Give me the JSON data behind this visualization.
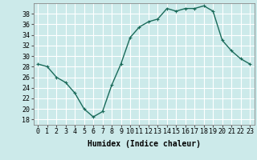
{
  "x": [
    0,
    1,
    2,
    3,
    4,
    5,
    6,
    7,
    8,
    9,
    10,
    11,
    12,
    13,
    14,
    15,
    16,
    17,
    18,
    19,
    20,
    21,
    22,
    23
  ],
  "y": [
    28.5,
    28.0,
    26.0,
    25.0,
    23.0,
    20.0,
    18.5,
    19.5,
    24.5,
    28.5,
    33.5,
    35.5,
    36.5,
    37.0,
    39.0,
    38.5,
    39.0,
    39.0,
    39.5,
    38.5,
    33.0,
    31.0,
    29.5,
    28.5
  ],
  "line_color": "#1a6b5a",
  "marker": "+",
  "marker_size": 3,
  "bg_color": "#cceaea",
  "grid_color": "#ffffff",
  "grid_minor_color": "#ddf3f3",
  "xlabel": "Humidex (Indice chaleur)",
  "ylim": [
    17,
    40
  ],
  "xlim": [
    -0.5,
    23.5
  ],
  "yticks": [
    18,
    20,
    22,
    24,
    26,
    28,
    30,
    32,
    34,
    36,
    38
  ],
  "xticks": [
    0,
    1,
    2,
    3,
    4,
    5,
    6,
    7,
    8,
    9,
    10,
    11,
    12,
    13,
    14,
    15,
    16,
    17,
    18,
    19,
    20,
    21,
    22,
    23
  ],
  "xtick_labels": [
    "0",
    "1",
    "2",
    "3",
    "4",
    "5",
    "6",
    "7",
    "8",
    "9",
    "10",
    "11",
    "12",
    "13",
    "14",
    "15",
    "16",
    "17",
    "18",
    "19",
    "20",
    "21",
    "22",
    "23"
  ],
  "ytick_labels": [
    "18",
    "20",
    "22",
    "24",
    "26",
    "28",
    "30",
    "32",
    "34",
    "36",
    "38"
  ],
  "xlabel_fontsize": 7,
  "tick_fontsize": 6,
  "linewidth": 1.0,
  "marker_linewidth": 0.8
}
